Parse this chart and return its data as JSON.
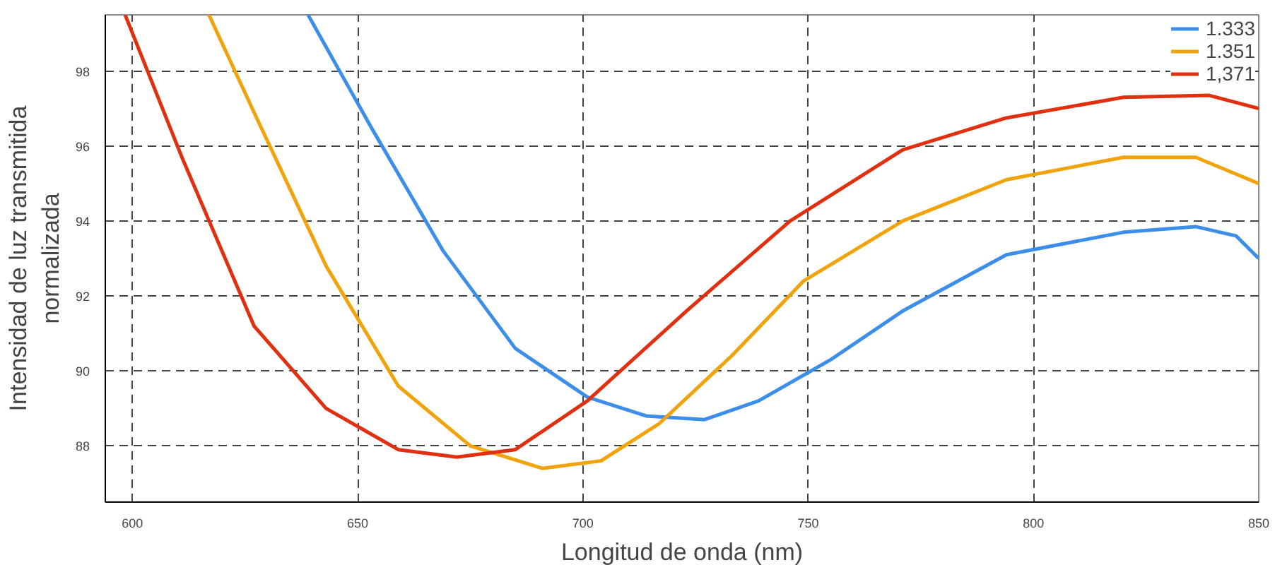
{
  "chart_data": {
    "type": "line",
    "xlabel": "Longitud de onda (nm)",
    "ylabel": "Intensidad de luz transmitida\nnormalizada",
    "xlim": [
      594,
      850
    ],
    "ylim": [
      86.5,
      99.5
    ],
    "xticks": [
      600,
      650,
      700,
      750,
      800,
      850
    ],
    "yticks": [
      88,
      90,
      92,
      94,
      96,
      98
    ],
    "grid": true,
    "legend": "top right",
    "marker": "none",
    "line_style": "solid",
    "series": [
      {
        "name": "1.333",
        "color": "#3d8ee8",
        "x": [
          639,
          653,
          669,
          685,
          701,
          714,
          727,
          739,
          755,
          771,
          794,
          820,
          836,
          845,
          850
        ],
        "values": [
          99.5,
          96.5,
          93.2,
          90.6,
          89.3,
          88.8,
          88.7,
          89.2,
          90.3,
          91.6,
          93.1,
          93.7,
          93.85,
          93.6,
          93.0
        ]
      },
      {
        "name": "1.351",
        "color": "#f0a30a",
        "x": [
          617,
          627,
          643,
          659,
          675,
          691,
          704,
          717,
          733,
          749,
          771,
          794,
          820,
          836,
          850
        ],
        "values": [
          99.5,
          96.9,
          92.8,
          89.6,
          88.0,
          87.4,
          87.6,
          88.6,
          90.4,
          92.4,
          94.0,
          95.1,
          95.7,
          95.7,
          95.0
        ]
      },
      {
        "name": "1,371",
        "color": "#e03010",
        "x": [
          598.4,
          611,
          627,
          643,
          659,
          672,
          685,
          701,
          723,
          746,
          771,
          794,
          820,
          839,
          850
        ],
        "values": [
          99.5,
          95.7,
          91.2,
          89.0,
          87.9,
          87.7,
          87.9,
          89.2,
          91.6,
          94.0,
          95.9,
          96.75,
          97.3,
          97.35,
          97.0
        ]
      }
    ]
  }
}
